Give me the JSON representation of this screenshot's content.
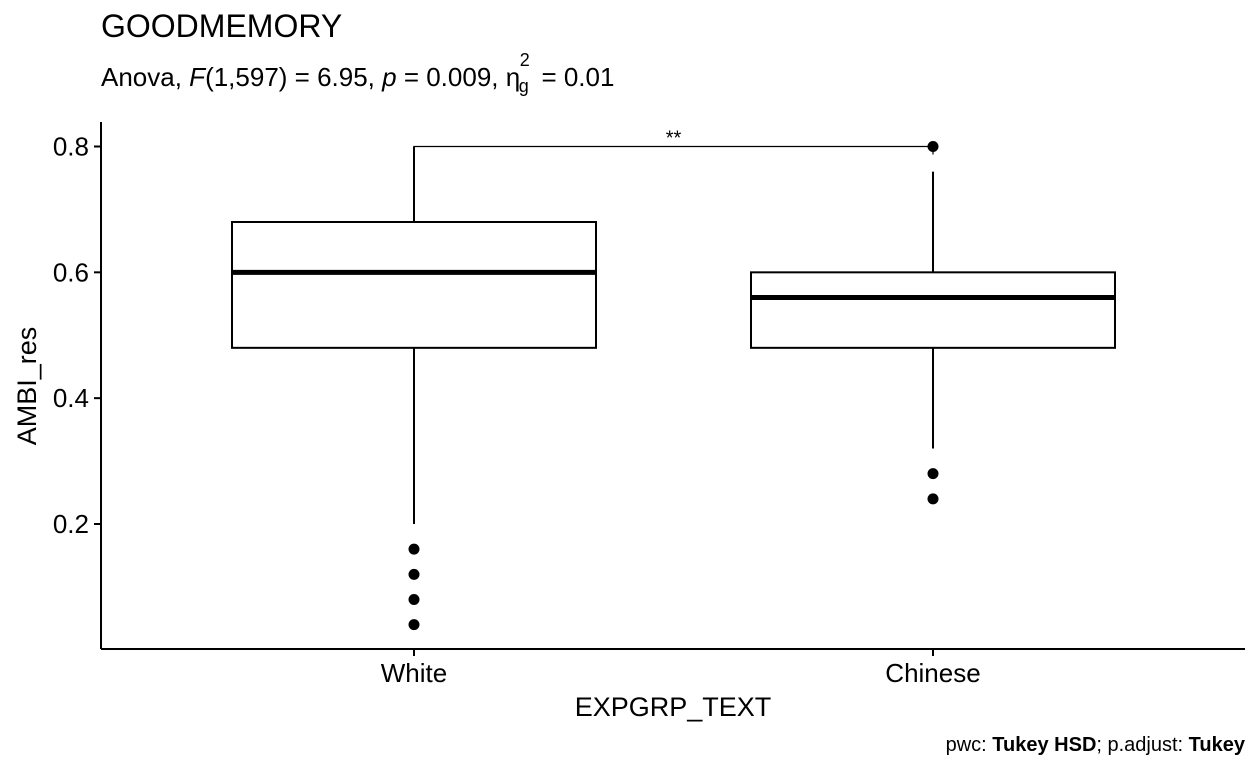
{
  "chart_data": {
    "type": "box",
    "title": "GOODMEMORY",
    "subtitle": {
      "prefix": "Anova, ",
      "f_symbol": "F",
      "f_args": "(1,597) = 6.95, ",
      "p_symbol": "p",
      "p_text": " = 0.009, ",
      "eta": "η",
      "eta_sup": "2",
      "eta_sub": "g",
      "eta_text": " = 0.01"
    },
    "xlabel": "EXPGRP_TEXT",
    "ylabel": "AMBI_res",
    "ylim": [
      0.0,
      0.84
    ],
    "yticks": [
      0.2,
      0.4,
      0.6,
      0.8
    ],
    "ytick_labels": [
      "0.2",
      "0.4",
      "0.6",
      "0.8"
    ],
    "categories": [
      "White",
      "Chinese"
    ],
    "boxes": [
      {
        "name": "White",
        "lower_whisker": 0.2,
        "q1": 0.48,
        "median": 0.6,
        "q3": 0.68,
        "upper_whisker": 0.8,
        "outliers": [
          0.16,
          0.12,
          0.08,
          0.04
        ]
      },
      {
        "name": "Chinese",
        "lower_whisker": 0.32,
        "q1": 0.48,
        "median": 0.56,
        "q3": 0.6,
        "upper_whisker": 0.76,
        "outliers": [
          0.8,
          0.28,
          0.24
        ]
      }
    ],
    "significance": {
      "groups": [
        "White",
        "Chinese"
      ],
      "y": 0.8,
      "label": "**"
    },
    "caption": {
      "pwc_label": "pwc: ",
      "pwc_value": "Tukey HSD",
      "sep": "; p.adjust: ",
      "padjust_value": "Tukey"
    },
    "grid": false
  }
}
